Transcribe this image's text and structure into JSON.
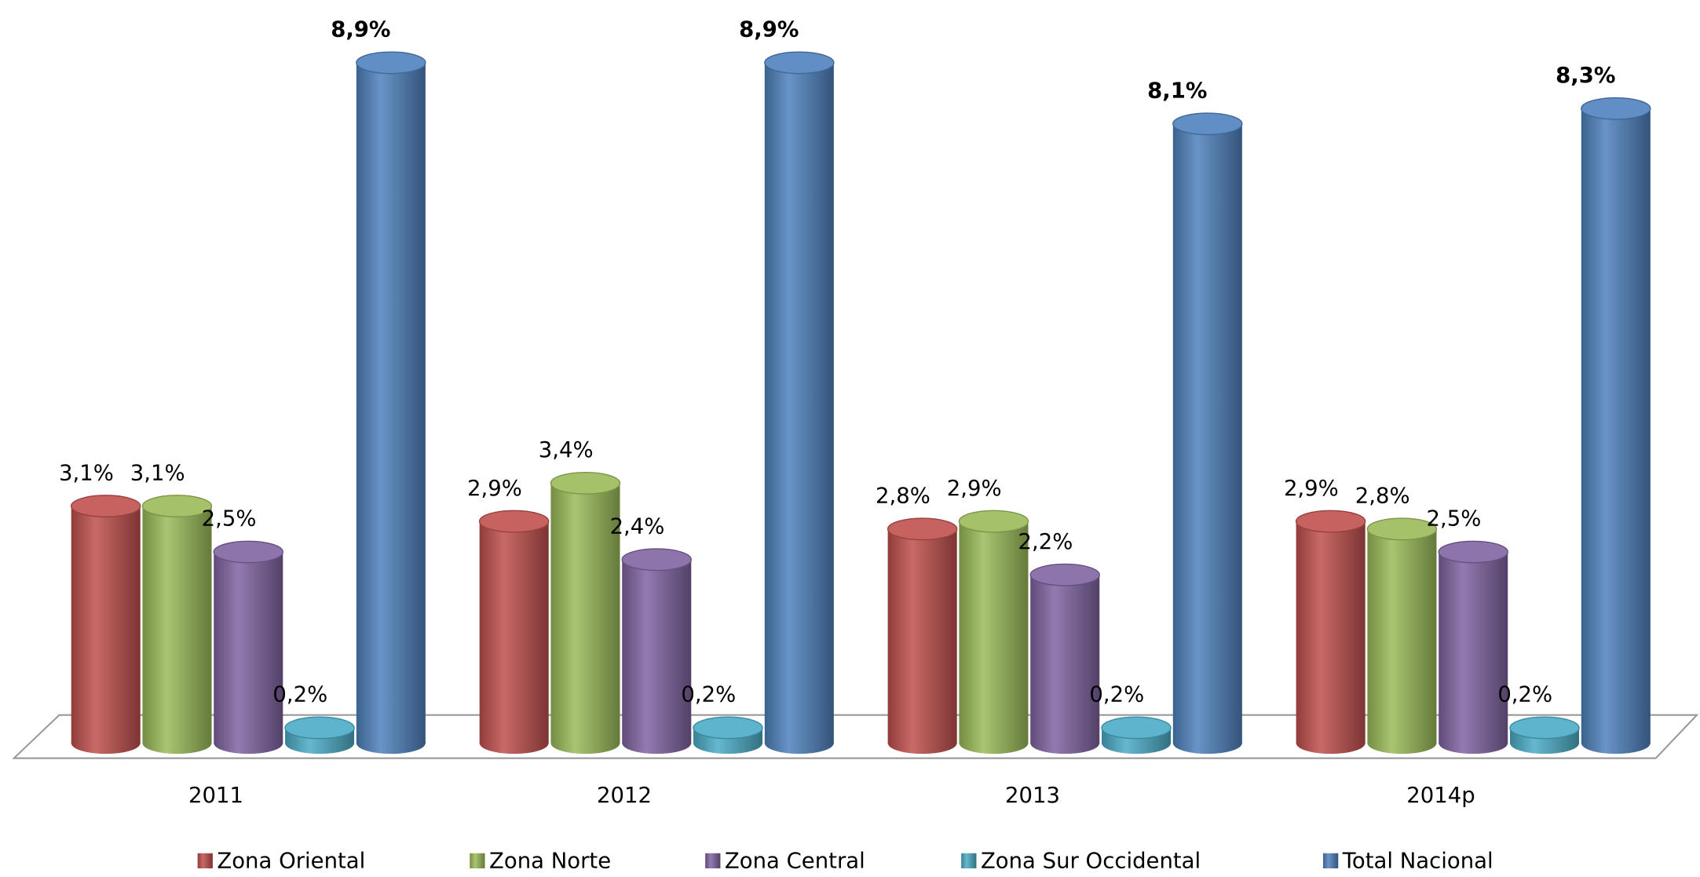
{
  "chart_data": {
    "type": "bar3d",
    "categories": [
      "2011",
      "2012",
      "2013",
      "2014p"
    ],
    "ylim": [
      0,
      9
    ],
    "series": [
      {
        "name": "Zona Oriental",
        "color": "#c0504d",
        "values": [
          3.1,
          2.9,
          2.8,
          2.9
        ],
        "value_labels": [
          "3,1%",
          "2,9%",
          "2,8%",
          "2,9%"
        ]
      },
      {
        "name": "Zona Norte",
        "color": "#9bbb59",
        "values": [
          3.1,
          3.4,
          2.9,
          2.8
        ],
        "value_labels": [
          "3,1%",
          "3,4%",
          "2,9%",
          "2,8%"
        ]
      },
      {
        "name": "Zona Central",
        "color": "#8064a2",
        "values": [
          2.5,
          2.4,
          2.2,
          2.5
        ],
        "value_labels": [
          "2,5%",
          "2,4%",
          "2,2%",
          "2,5%"
        ]
      },
      {
        "name": "Zona Sur Occidental",
        "color": "#4bacc6",
        "values": [
          0.2,
          0.2,
          0.2,
          0.2
        ],
        "value_labels": [
          "0,2%",
          "0,2%",
          "0,2%",
          "0,2%"
        ]
      },
      {
        "name": "Total Nacional",
        "color": "#4f81bd",
        "values": [
          8.9,
          8.9,
          8.1,
          8.3
        ],
        "value_labels": [
          "8,9%",
          "8,9%",
          "8,1%",
          "8,3%"
        ]
      }
    ]
  }
}
